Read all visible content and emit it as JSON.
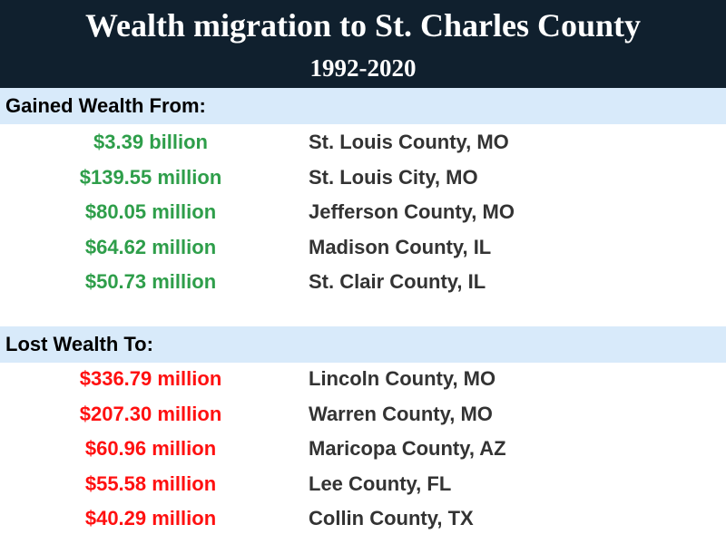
{
  "title": "Wealth migration to St. Charles County",
  "subtitle": "1992-2020",
  "colors": {
    "header_bg": "#10202e",
    "band_bg": "#d8eafa",
    "gain": "#2e9e4a",
    "loss": "#ff1010",
    "place_text": "#333333"
  },
  "chart_data": {
    "type": "table",
    "title": "Wealth migration to St. Charles County",
    "subtitle": "1992-2020",
    "sections": [
      {
        "label": "Gained Wealth From:",
        "direction": "gain",
        "rows": [
          {
            "amount": "$3.39 billion",
            "place": "St. Louis County, MO",
            "value_millions": 3390
          },
          {
            "amount": "$139.55 million",
            "place": "St. Louis City, MO",
            "value_millions": 139.55
          },
          {
            "amount": "$80.05 million",
            "place": "Jefferson County, MO",
            "value_millions": 80.05
          },
          {
            "amount": "$64.62 million",
            "place": "Madison County, IL",
            "value_millions": 64.62
          },
          {
            "amount": "$50.73 million",
            "place": "St. Clair County, IL",
            "value_millions": 50.73
          }
        ]
      },
      {
        "label": "Lost Wealth To:",
        "direction": "loss",
        "rows": [
          {
            "amount": "$336.79 million",
            "place": "Lincoln County, MO",
            "value_millions": 336.79
          },
          {
            "amount": "$207.30 million",
            "place": "Warren County, MO",
            "value_millions": 207.3
          },
          {
            "amount": "$60.96 million",
            "place": "Maricopa County, AZ",
            "value_millions": 60.96
          },
          {
            "amount": "$55.58 million",
            "place": "Lee County, FL",
            "value_millions": 55.58
          },
          {
            "amount": "$40.29 million",
            "place": "Collin County, TX",
            "value_millions": 40.29
          }
        ]
      }
    ]
  }
}
